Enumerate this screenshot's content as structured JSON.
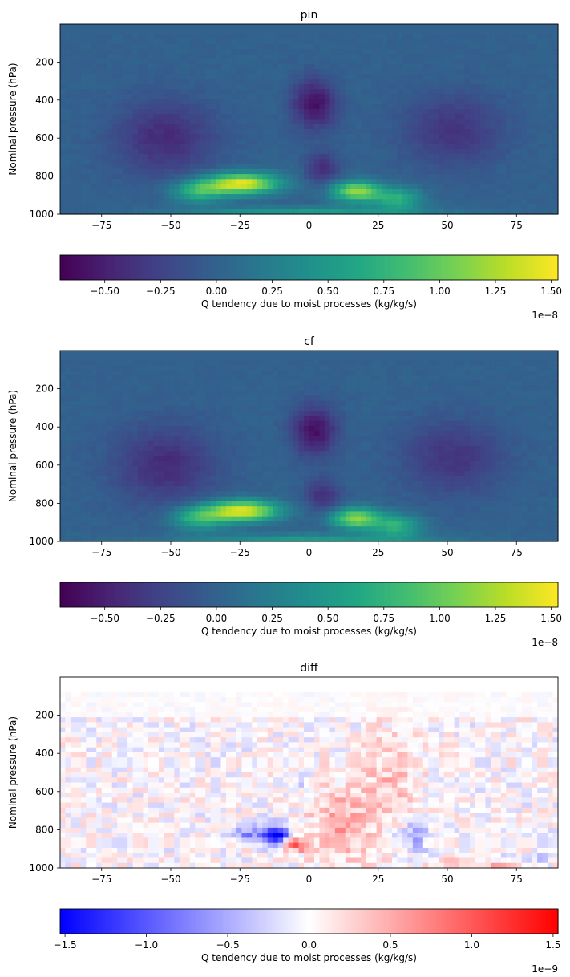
{
  "chart_data": [
    {
      "type": "heatmap",
      "title": "pin",
      "xlabel": "",
      "ylabel": "Nominal pressure (hPa)",
      "xlim": [
        -90,
        90
      ],
      "ylim": [
        1000,
        0
      ],
      "xticks": [
        -75,
        -50,
        -25,
        0,
        25,
        50,
        75
      ],
      "yticks": [
        200,
        400,
        600,
        800,
        1000
      ],
      "colormap": "viridis",
      "colorbar": {
        "label": "Q tendency due to moist processes (kg/kg/s)",
        "range": [
          -0.7,
          1.53
        ],
        "ticks": [
          -0.5,
          -0.25,
          0.0,
          0.25,
          0.5,
          0.75,
          1.0,
          1.25,
          1.5
        ],
        "tick_labels": [
          "−0.50",
          "−0.25",
          "0.00",
          "0.25",
          "0.50",
          "0.75",
          "1.00",
          "1.25",
          "1.50"
        ],
        "offset_text": "1e−8"
      },
      "features": [
        {
          "kind": "moistening",
          "lat_range": [
            -40,
            -5
          ],
          "p_range": [
            780,
            900
          ],
          "peak": 1.5
        },
        {
          "kind": "moistening",
          "lat_range": [
            10,
            35
          ],
          "p_range": [
            820,
            950
          ],
          "peak": 1.3
        },
        {
          "kind": "drying",
          "lat_range": [
            -70,
            -35
          ],
          "p_range": [
            400,
            850
          ],
          "peak": -0.55
        },
        {
          "kind": "drying",
          "lat_range": [
            35,
            70
          ],
          "p_range": [
            400,
            750
          ],
          "peak": -0.5
        },
        {
          "kind": "drying",
          "lat_range": [
            -10,
            15
          ],
          "p_range": [
            250,
            550
          ],
          "peak": -0.7
        }
      ]
    },
    {
      "type": "heatmap",
      "title": "cf",
      "xlabel": "",
      "ylabel": "Nominal pressure (hPa)",
      "xlim": [
        -90,
        90
      ],
      "ylim": [
        1000,
        0
      ],
      "xticks": [
        -75,
        -50,
        -25,
        0,
        25,
        50,
        75
      ],
      "yticks": [
        200,
        400,
        600,
        800,
        1000
      ],
      "colormap": "viridis",
      "colorbar": {
        "label": "Q tendency due to moist processes (kg/kg/s)",
        "range": [
          -0.7,
          1.53
        ],
        "ticks": [
          -0.5,
          -0.25,
          0.0,
          0.25,
          0.5,
          0.75,
          1.0,
          1.25,
          1.5
        ],
        "tick_labels": [
          "−0.50",
          "−0.25",
          "0.00",
          "0.25",
          "0.50",
          "0.75",
          "1.00",
          "1.25",
          "1.50"
        ],
        "offset_text": "1e−8"
      }
    },
    {
      "type": "heatmap",
      "title": "diff",
      "xlabel": "",
      "ylabel": "Nominal pressure (hPa)",
      "xlim": [
        -90,
        90
      ],
      "ylim": [
        1000,
        0
      ],
      "xticks": [
        -75,
        -50,
        -25,
        0,
        25,
        50,
        75
      ],
      "yticks": [
        200,
        400,
        600,
        800,
        1000
      ],
      "colormap": "bwr",
      "colorbar": {
        "label": "Q tendency due to moist processes (kg/kg/s)",
        "range": [
          -1.53,
          1.53
        ],
        "ticks": [
          -1.5,
          -1.0,
          -0.5,
          0.0,
          0.5,
          1.0,
          1.5
        ],
        "tick_labels": [
          "−1.5",
          "−1.0",
          "−0.5",
          "0.0",
          "0.5",
          "1.0",
          "1.5"
        ],
        "offset_text": "1e−9"
      },
      "features": [
        {
          "kind": "negative",
          "lat_range": [
            -20,
            -5
          ],
          "p_range": [
            750,
            900
          ],
          "peak": -1.5
        },
        {
          "kind": "positive",
          "lat_range": [
            5,
            40
          ],
          "p_range": [
            300,
            950
          ],
          "peak": 0.6
        },
        {
          "kind": "positive",
          "lat_range": [
            -15,
            -3
          ],
          "p_range": [
            850,
            950
          ],
          "peak": 0.9
        }
      ]
    }
  ]
}
